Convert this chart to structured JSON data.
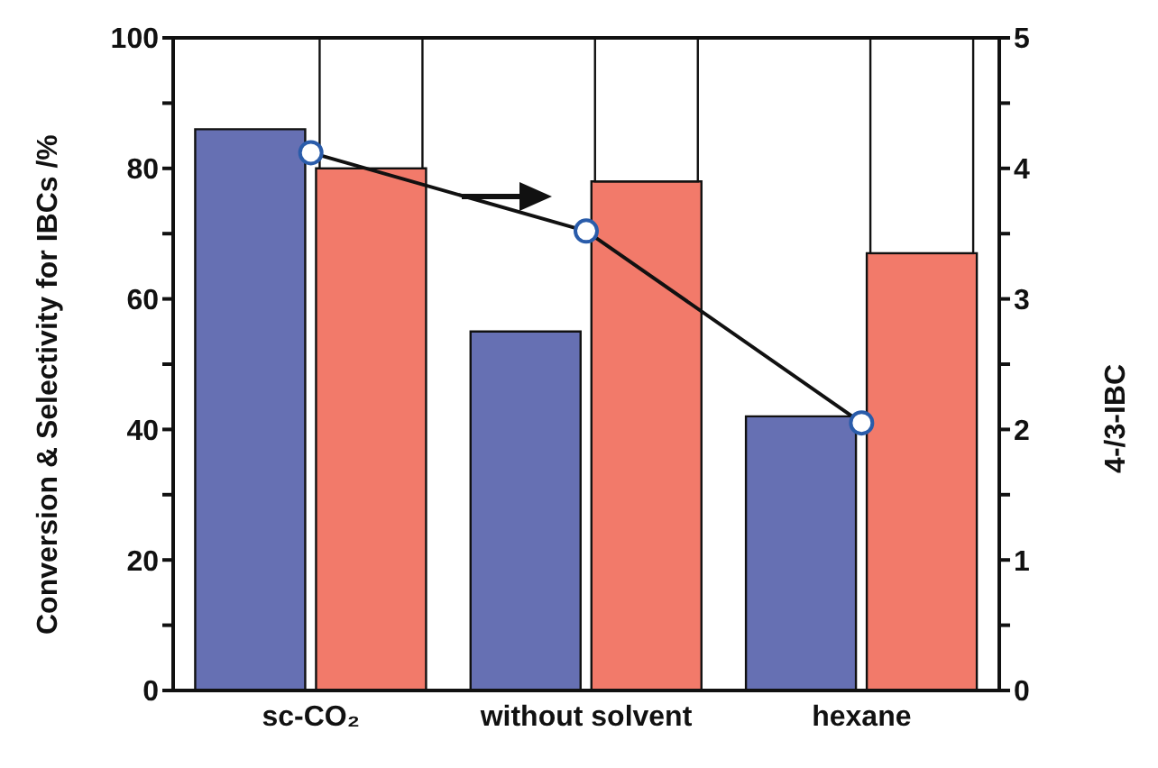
{
  "chart_data": {
    "type": "bar",
    "categories": [
      "sc-CO₂",
      "without solvent",
      "hexane"
    ],
    "ylabel": "Conversion & Selectivity for IBCs /%",
    "y2label": "4-/3-IBC",
    "series": [
      {
        "color": "#6670b3",
        "values": [
          86,
          55,
          42
        ]
      },
      {
        "color": "#f27a6a",
        "values": [
          80,
          78,
          67
        ]
      },
      {
        "color": "#ffffff",
        "base": [
          80,
          78,
          67
        ],
        "values": [
          20,
          22,
          33
        ]
      },
      {
        "type": "line",
        "axis": "y2",
        "color": "#111111",
        "values": [
          4.12,
          3.52,
          2.05
        ]
      }
    ],
    "marker": "circle",
    "ylim": [
      0,
      100
    ],
    "yticks": [
      0,
      {
        "value": 10,
        "label": null
      },
      20,
      {
        "value": 30,
        "label": null
      },
      40,
      {
        "value": 50,
        "label": null
      },
      60,
      {
        "value": 70,
        "label": null
      },
      80,
      {
        "value": 90,
        "label": null
      },
      100
    ],
    "y2lim": [
      0,
      5
    ],
    "y2ticks": [
      0,
      {
        "value": 0.5,
        "label": null
      },
      1,
      {
        "value": 1.5,
        "label": null
      },
      2,
      {
        "value": 2.5,
        "label": null
      },
      3,
      {
        "value": 3.5,
        "label": null
      },
      4,
      {
        "value": 4.5,
        "label": null
      },
      5
    ]
  }
}
